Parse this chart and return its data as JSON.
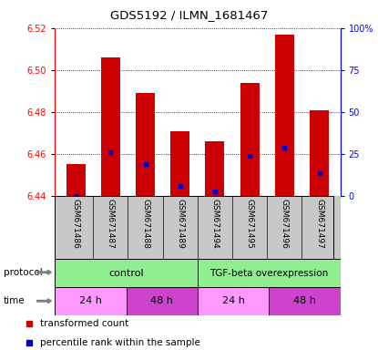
{
  "title": "GDS5192 / ILMN_1681467",
  "samples": [
    "GSM671486",
    "GSM671487",
    "GSM671488",
    "GSM671489",
    "GSM671494",
    "GSM671495",
    "GSM671496",
    "GSM671497"
  ],
  "bar_bottoms": [
    6.44,
    6.44,
    6.44,
    6.44,
    6.44,
    6.44,
    6.44,
    6.44
  ],
  "bar_tops": [
    6.455,
    6.506,
    6.489,
    6.471,
    6.466,
    6.494,
    6.517,
    6.481
  ],
  "percentile_values": [
    6.44,
    6.461,
    6.455,
    6.445,
    6.442,
    6.459,
    6.463,
    6.451
  ],
  "ylim": [
    6.44,
    6.52
  ],
  "yticks_left": [
    6.44,
    6.46,
    6.48,
    6.5,
    6.52
  ],
  "yticks_right": [
    0,
    25,
    50,
    75,
    100
  ],
  "bar_color": "#cc0000",
  "percentile_color": "#0000cc",
  "plot_bg": "#ffffff",
  "label_bg": "#c8c8c8",
  "protocol_color": "#90ee90",
  "time_light_color": "#ff99ff",
  "time_dark_color": "#cc44cc",
  "legend_red": "transformed count",
  "legend_blue": "percentile rank within the sample",
  "protocol_control": "control",
  "protocol_tgf": "TGF-beta overexpression"
}
